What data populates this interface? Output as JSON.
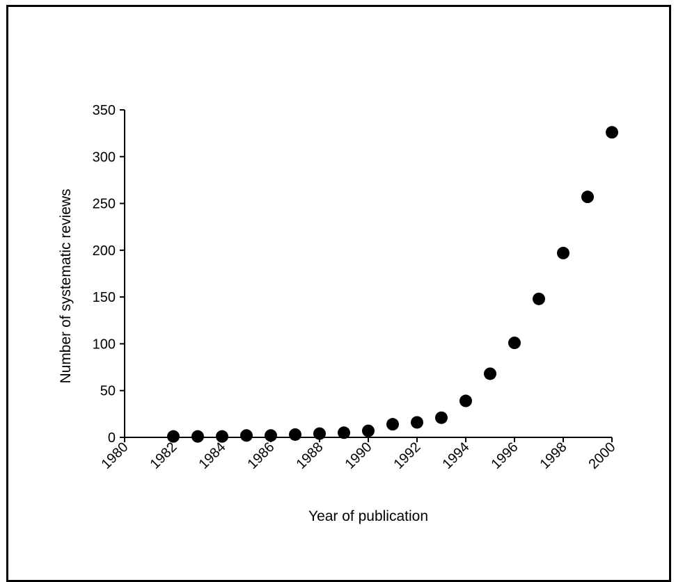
{
  "chart_data": {
    "type": "scatter",
    "xlabel": "Year of publication",
    "ylabel": "Number of systematic reviews",
    "xlim": [
      1980,
      2000
    ],
    "ylim": [
      0,
      350
    ],
    "x_ticks": [
      1980,
      1982,
      1984,
      1986,
      1988,
      1990,
      1992,
      1994,
      1996,
      1998,
      2000
    ],
    "y_ticks": [
      0,
      50,
      100,
      150,
      200,
      250,
      300,
      350
    ],
    "x_tick_labels": [
      "1980",
      "1982",
      "1984",
      "1986",
      "1988",
      "1990",
      "1992",
      "1994",
      "1996",
      "1998",
      "2000"
    ],
    "y_tick_labels": [
      "0",
      "50",
      "100",
      "150",
      "200",
      "250",
      "300",
      "350"
    ],
    "grid": false,
    "series": [
      {
        "x": [
          1982,
          1983,
          1984,
          1985,
          1986,
          1987,
          1988,
          1989,
          1990,
          1991,
          1992,
          1993,
          1994,
          1995,
          1996,
          1997,
          1998,
          1999,
          2000
        ],
        "y": [
          1,
          1,
          1,
          2,
          2,
          3,
          4,
          5,
          7,
          14,
          16,
          21,
          39,
          68,
          101,
          148,
          197,
          257,
          326
        ]
      }
    ],
    "marker_color": "#000000"
  }
}
